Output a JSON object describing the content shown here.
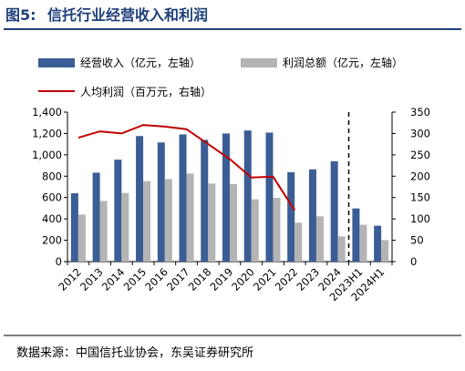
{
  "figure": {
    "label": "图5:",
    "title": "信托行业经营收入和利润",
    "source": "数据来源：中国信托业协会，东吴证券研究所"
  },
  "colors": {
    "title": "#1f3f7a",
    "revenue": "#3b5d95",
    "profit": "#b4b4b4",
    "per_capita": "#c00000",
    "rule": "#000000"
  },
  "chart_data": {
    "type": "bar",
    "categories": [
      "2012",
      "2013",
      "2014",
      "2015",
      "2016",
      "2017",
      "2018",
      "2019",
      "2020",
      "2021",
      "2022",
      "2023",
      "2024",
      "2023H1",
      "2024H1"
    ],
    "left_axis": {
      "min": 0,
      "max": 1400,
      "ticks": [
        "0",
        "200",
        "400",
        "600",
        "800",
        "1,000",
        "1,200",
        "1,400"
      ]
    },
    "right_axis": {
      "min": 0,
      "max": 350,
      "ticks": [
        "0",
        "50",
        "100",
        "150",
        "200",
        "250",
        "300",
        "350"
      ]
    },
    "legend": [
      {
        "label": "经营收入（亿元，左轴）",
        "series": "revenue"
      },
      {
        "label": "利润总额（亿元，左轴）",
        "series": "profit"
      },
      {
        "label": "人均利润（百万元，右轴）",
        "series": "per_capita"
      }
    ],
    "series": [
      {
        "key": "revenue",
        "type": "bar",
        "axis": "left",
        "values": [
          640,
          833,
          955,
          1176,
          1116,
          1191,
          1140,
          1200,
          1228,
          1208,
          838,
          864,
          940,
          498,
          336
        ]
      },
      {
        "key": "profit",
        "type": "bar",
        "axis": "left",
        "values": [
          441,
          568,
          643,
          754,
          773,
          825,
          731,
          727,
          583,
          597,
          365,
          424,
          236,
          346,
          202
        ]
      },
      {
        "key": "per_capita",
        "type": "line",
        "axis": "right",
        "values": [
          290,
          305,
          300,
          320,
          316,
          310,
          275,
          240,
          197,
          199,
          120,
          null,
          null,
          null,
          null
        ]
      }
    ],
    "divider_after": "2024"
  }
}
